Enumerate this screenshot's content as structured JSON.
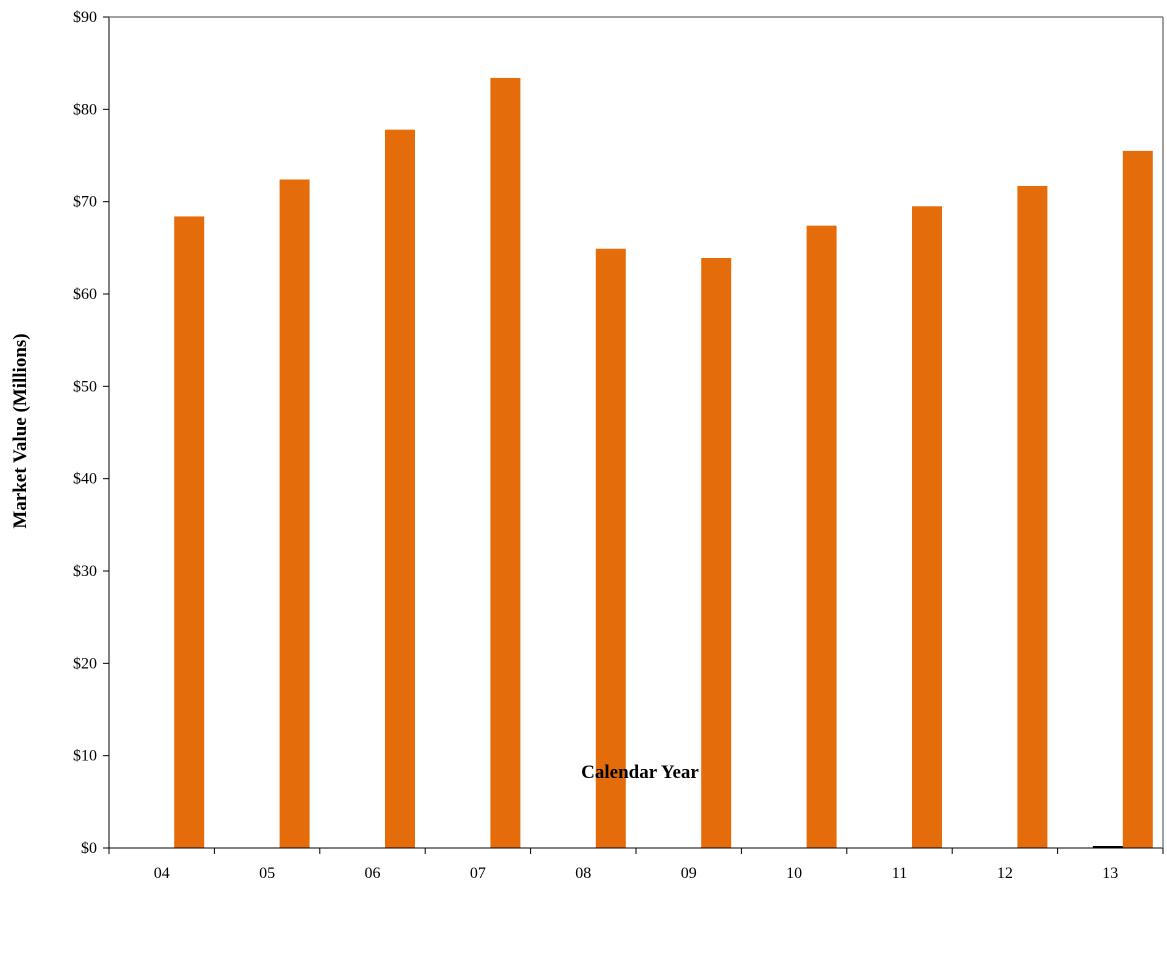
{
  "chart_data": {
    "type": "bar",
    "title": "",
    "xlabel": "Calendar Year",
    "ylabel": "Market Value (Millions)",
    "categories": [
      "04",
      "05",
      "06",
      "07",
      "08",
      "09",
      "10",
      "11",
      "12",
      "13"
    ],
    "series": [
      {
        "values": [
          68.4,
          72.4,
          77.8,
          83.4,
          64.9,
          63.9,
          67.4,
          69.5,
          71.7,
          75.5
        ],
        "color": "#E46C0A"
      },
      {
        "values": [
          0,
          0,
          0,
          0,
          0,
          0,
          0,
          0,
          0,
          0.1
        ],
        "color": "#000000"
      }
    ],
    "ylim": [
      0,
      90
    ],
    "yticks": [
      0,
      10,
      20,
      30,
      40,
      50,
      60,
      70,
      80,
      90
    ],
    "ytick_labels": [
      "$0",
      "$10",
      "$20",
      "$30",
      "$40",
      "$50",
      "$60",
      "$70",
      "$80",
      "$90"
    ],
    "grid": false,
    "legend": "none"
  }
}
